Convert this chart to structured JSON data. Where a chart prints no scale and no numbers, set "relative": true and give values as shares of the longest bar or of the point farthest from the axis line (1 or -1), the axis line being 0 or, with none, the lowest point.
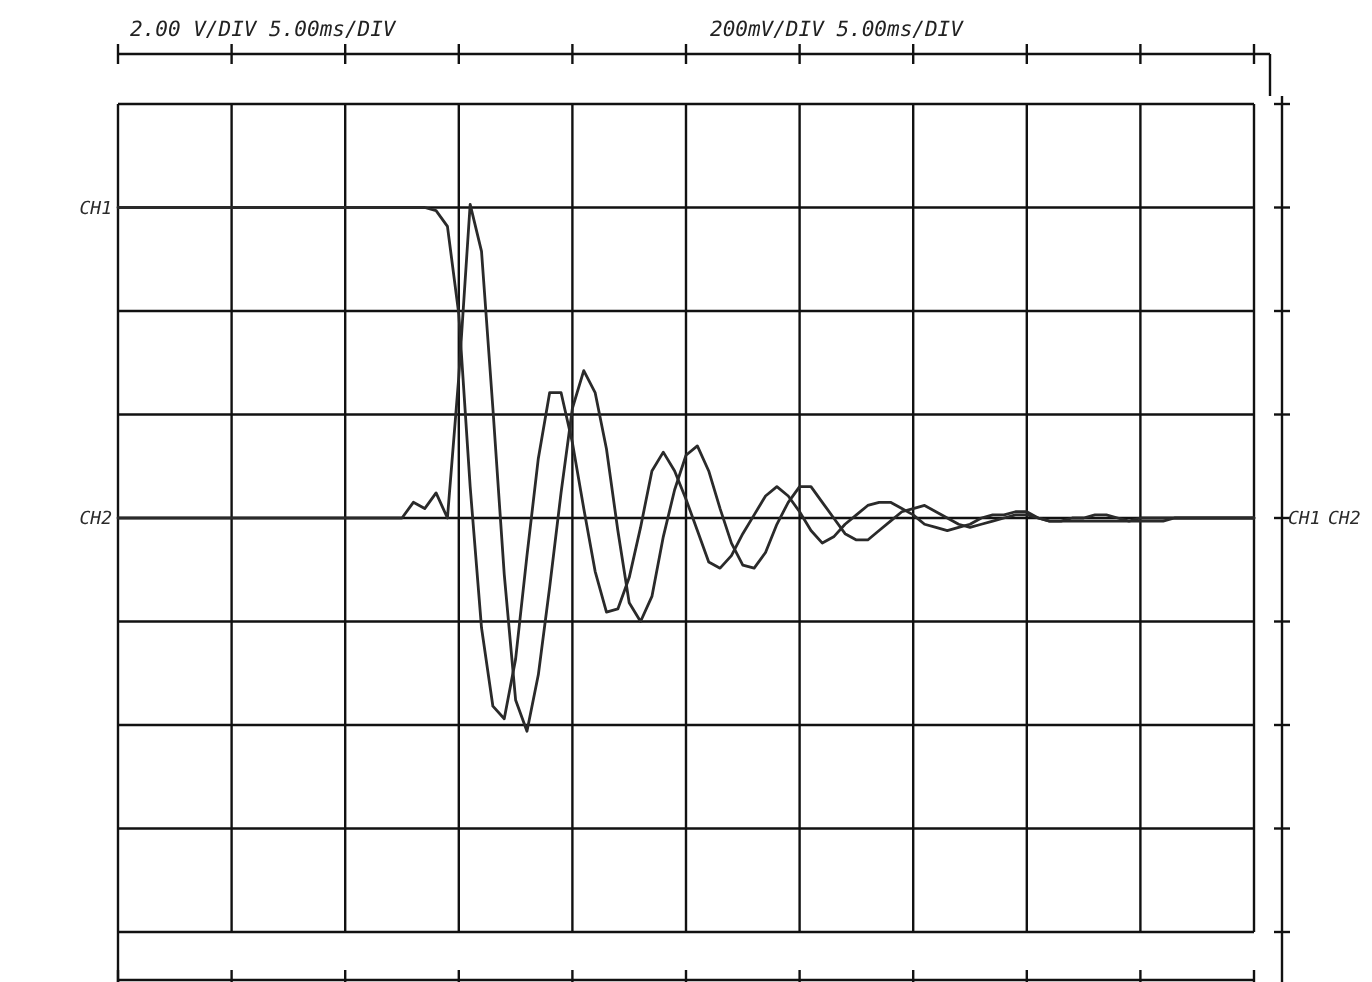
{
  "chart_data": {
    "type": "line",
    "relative": true,
    "grid": true,
    "marker": "none",
    "line_style": "solid",
    "legend": "left",
    "annotations": [
      "2.00 V/DIV 5.00ms/DIV",
      "200mV/DIV 5.00ms/DIV"
    ],
    "categories": [
      null,
      null,
      null,
      null,
      null,
      null,
      null,
      null,
      null,
      null,
      null,
      null,
      null,
      null,
      null,
      null,
      null,
      null,
      null,
      null,
      null,
      null,
      null,
      null,
      null,
      null,
      null,
      null,
      null,
      null,
      null,
      null,
      null,
      null,
      null,
      null,
      null,
      null,
      null,
      null,
      null,
      null,
      null,
      null,
      null,
      null,
      null,
      null,
      null,
      null,
      null,
      null,
      null,
      null,
      null,
      null,
      null,
      null,
      null,
      null,
      null,
      null,
      null,
      null,
      null,
      null,
      null,
      null,
      null,
      null,
      null,
      null,
      null,
      null,
      null,
      null,
      null,
      null,
      null,
      null,
      null,
      null,
      null,
      null,
      null,
      null,
      null,
      null,
      null,
      null,
      null,
      null,
      null,
      null,
      null,
      null,
      null,
      null,
      null,
      null,
      null
    ],
    "series": [
      {
        "name": "CH1",
        "color": "#2a2a2a",
        "values": [
          0.99,
          0.99,
          0.99,
          0.99,
          0.99,
          0.99,
          0.99,
          0.99,
          0.99,
          0.99,
          0.99,
          0.99,
          0.99,
          0.99,
          0.99,
          0.99,
          0.99,
          0.99,
          0.99,
          0.99,
          0.99,
          0.99,
          0.99,
          0.99,
          0.99,
          0.99,
          0.99,
          0.99,
          0.98,
          0.93,
          0.65,
          0.1,
          -0.35,
          -0.6,
          -0.64,
          -0.45,
          -0.12,
          0.19,
          0.4,
          0.4,
          0.24,
          0.03,
          -0.17,
          -0.3,
          -0.29,
          -0.19,
          -0.03,
          0.15,
          0.21,
          0.15,
          0.06,
          -0.04,
          -0.14,
          -0.16,
          -0.12,
          -0.05,
          0.01,
          0.07,
          0.1,
          0.07,
          0.02,
          -0.04,
          -0.08,
          -0.06,
          -0.02,
          0.01,
          0.04,
          0.05,
          0.05,
          0.03,
          0.01,
          -0.02,
          -0.03,
          -0.04,
          -0.03,
          -0.02,
          0,
          0.01,
          0.01,
          0.02,
          0.02,
          0,
          -0.01,
          -0.01,
          -0.01,
          -0.01,
          -0.01,
          -0.01,
          -0.01,
          -0.01,
          0,
          0,
          0,
          0,
          0,
          0,
          0,
          0,
          0,
          0,
          0
        ]
      },
      {
        "name": "CH2",
        "color": "#2a2a2a",
        "values": [
          0,
          0,
          0,
          0,
          0,
          0,
          0,
          0,
          0,
          0,
          0,
          0,
          0,
          0,
          0,
          0,
          0,
          0,
          0,
          0,
          0,
          0,
          0,
          0,
          0,
          0,
          0.05,
          0.03,
          0.08,
          0,
          0.45,
          1.0,
          0.85,
          0.35,
          -0.18,
          -0.58,
          -0.68,
          -0.5,
          -0.22,
          0.08,
          0.35,
          0.47,
          0.4,
          0.22,
          -0.04,
          -0.27,
          -0.33,
          -0.25,
          -0.06,
          0.09,
          0.2,
          0.23,
          0.15,
          0.03,
          -0.08,
          -0.15,
          -0.16,
          -0.11,
          -0.02,
          0.05,
          0.1,
          0.1,
          0.05,
          0,
          -0.05,
          -0.07,
          -0.07,
          -0.04,
          -0.01,
          0.02,
          0.03,
          0.04,
          0.02,
          0,
          -0.02,
          -0.03,
          -0.02,
          -0.01,
          0,
          0.01,
          0.01,
          0,
          -0.01,
          -0.01,
          0,
          0,
          0.01,
          0.01,
          0,
          -0.01,
          -0.01,
          -0.01,
          -0.01,
          0,
          0,
          0,
          0,
          0,
          0,
          0,
          0
        ]
      }
    ]
  }
}
